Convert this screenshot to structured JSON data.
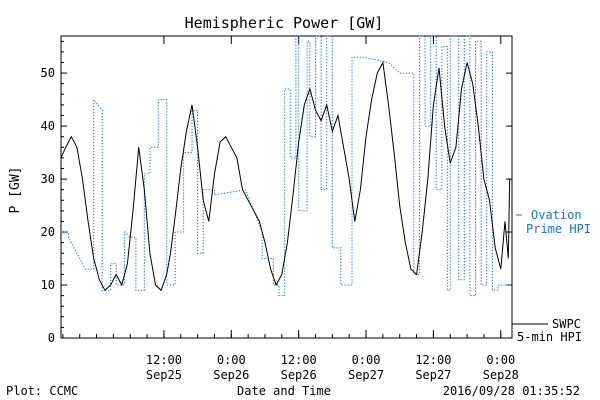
{
  "chart_data": {
    "type": "line",
    "title": "Hemispheric Power [GW]",
    "ylabel": "P [GW]",
    "xlabel": "Date and Time",
    "ylim": [
      0,
      57
    ],
    "yticks": [
      0,
      10,
      20,
      30,
      40,
      50
    ],
    "xlim": [
      "2016-09-24T17:40",
      "2016-09-28T02:00"
    ],
    "xticks": [
      {
        "t": "2016-09-25T12:00",
        "time": "12:00",
        "date": "Sep25"
      },
      {
        "t": "2016-09-26T00:00",
        "time": "0:00",
        "date": "Sep26"
      },
      {
        "t": "2016-09-26T12:00",
        "time": "12:00",
        "date": "Sep26"
      },
      {
        "t": "2016-09-27T00:00",
        "time": "0:00",
        "date": "Sep27"
      },
      {
        "t": "2016-09-27T12:00",
        "time": "12:00",
        "date": "Sep27"
      },
      {
        "t": "2016-09-28T00:00",
        "time": "0:00",
        "date": "Sep28"
      }
    ],
    "series": [
      {
        "name": "SWPC 5-min HPI",
        "color": "#000000",
        "style": "solid",
        "x": [
          "2016-09-24T17:40",
          "2016-09-24T18:30",
          "2016-09-24T19:30",
          "2016-09-24T20:30",
          "2016-09-24T21:30",
          "2016-09-24T22:30",
          "2016-09-24T23:30",
          "2016-09-25T00:30",
          "2016-09-25T01:30",
          "2016-09-25T02:30",
          "2016-09-25T03:30",
          "2016-09-25T04:30",
          "2016-09-25T05:30",
          "2016-09-25T06:30",
          "2016-09-25T07:30",
          "2016-09-25T08:30",
          "2016-09-25T09:30",
          "2016-09-25T10:30",
          "2016-09-25T11:30",
          "2016-09-25T12:30",
          "2016-09-25T13:10",
          "2016-09-25T14:00",
          "2016-09-25T15:00",
          "2016-09-25T16:00",
          "2016-09-25T17:00",
          "2016-09-25T18:00",
          "2016-09-25T19:00",
          "2016-09-25T20:00",
          "2016-09-25T21:00",
          "2016-09-25T22:00",
          "2016-09-25T23:00",
          "2016-09-26T00:00",
          "2016-09-26T01:00",
          "2016-09-26T02:00",
          "2016-09-26T03:00",
          "2016-09-26T04:00",
          "2016-09-26T05:00",
          "2016-09-26T06:00",
          "2016-09-26T07:00",
          "2016-09-26T08:00",
          "2016-09-26T09:00",
          "2016-09-26T10:00",
          "2016-09-26T11:00",
          "2016-09-26T12:00",
          "2016-09-26T13:00",
          "2016-09-26T14:00",
          "2016-09-26T15:00",
          "2016-09-26T16:00",
          "2016-09-26T17:00",
          "2016-09-26T18:00",
          "2016-09-26T19:00",
          "2016-09-26T20:00",
          "2016-09-26T21:00",
          "2016-09-26T22:00",
          "2016-09-26T23:00",
          "2016-09-27T00:00",
          "2016-09-27T01:00",
          "2016-09-27T02:00",
          "2016-09-27T03:00",
          "2016-09-27T04:00",
          "2016-09-27T05:00",
          "2016-09-27T06:00",
          "2016-09-27T07:00",
          "2016-09-27T08:00",
          "2016-09-27T09:00",
          "2016-09-27T10:00",
          "2016-09-27T11:00",
          "2016-09-27T12:00",
          "2016-09-27T13:00",
          "2016-09-27T14:00",
          "2016-09-27T15:00",
          "2016-09-27T16:00",
          "2016-09-27T17:00",
          "2016-09-27T18:00",
          "2016-09-27T19:00",
          "2016-09-27T20:00",
          "2016-09-27T21:00",
          "2016-09-27T22:00",
          "2016-09-27T23:00",
          "2016-09-28T00:00",
          "2016-09-28T00:45",
          "2016-09-28T01:20",
          "2016-09-28T01:35"
        ],
        "y": [
          34,
          36,
          38,
          36,
          30,
          22,
          15,
          11,
          9,
          10,
          12,
          10,
          14,
          24,
          36,
          28,
          16,
          10,
          9,
          12,
          16,
          23,
          32,
          39,
          44,
          36,
          26,
          22,
          31,
          37,
          38,
          36,
          34,
          28,
          26,
          24,
          22,
          18,
          13,
          10,
          12,
          18,
          27,
          37,
          44,
          47,
          43,
          41,
          44,
          39,
          42,
          36,
          30,
          22,
          28,
          38,
          45,
          50,
          52,
          44,
          35,
          25,
          18,
          13,
          12,
          20,
          30,
          44,
          51,
          40,
          33,
          36,
          47,
          52,
          48,
          40,
          30,
          26,
          17,
          13,
          22,
          15,
          30
        ]
      },
      {
        "name": "Ovation Prime HPI",
        "color": "#1f6fd0",
        "style": "dotted",
        "x": [
          "2016-09-24T17:40",
          "2016-09-24T19:00",
          "2016-09-24T19:00",
          "2016-09-24T22:00",
          "2016-09-24T23:30",
          "2016-09-24T23:30",
          "2016-09-25T01:00",
          "2016-09-25T01:00",
          "2016-09-25T02:30",
          "2016-09-25T02:30",
          "2016-09-25T03:30",
          "2016-09-25T03:30",
          "2016-09-25T05:00",
          "2016-09-25T05:00",
          "2016-09-25T06:00",
          "2016-09-25T07:00",
          "2016-09-25T07:00",
          "2016-09-25T08:30",
          "2016-09-25T08:30",
          "2016-09-25T09:30",
          "2016-09-25T09:30",
          "2016-09-25T11:00",
          "2016-09-25T11:00",
          "2016-09-25T12:30",
          "2016-09-25T12:30",
          "2016-09-25T14:00",
          "2016-09-25T14:00",
          "2016-09-25T15:30",
          "2016-09-25T15:30",
          "2016-09-25T17:00",
          "2016-09-25T17:00",
          "2016-09-25T18:00",
          "2016-09-25T18:00",
          "2016-09-25T19:00",
          "2016-09-25T19:00",
          "2016-09-25T21:00",
          "2016-09-25T21:00",
          "2016-09-26T02:30",
          "2016-09-26T05:30",
          "2016-09-26T05:30",
          "2016-09-26T07:30",
          "2016-09-26T07:30",
          "2016-09-26T08:30",
          "2016-09-26T08:30",
          "2016-09-26T09:30",
          "2016-09-26T09:30",
          "2016-09-26T10:30",
          "2016-09-26T10:30",
          "2016-09-26T11:30",
          "2016-09-26T11:30",
          "2016-09-26T12:00",
          "2016-09-26T12:00",
          "2016-09-26T13:30",
          "2016-09-26T13:30",
          "2016-09-26T14:00",
          "2016-09-26T14:00",
          "2016-09-26T15:00",
          "2016-09-26T15:00",
          "2016-09-26T16:00",
          "2016-09-26T16:00",
          "2016-09-26T17:00",
          "2016-09-26T17:00",
          "2016-09-26T18:00",
          "2016-09-26T18:00",
          "2016-09-26T19:30",
          "2016-09-26T19:30",
          "2016-09-26T21:30",
          "2016-09-26T21:30",
          "2016-09-26T23:30",
          "2016-09-27T04:00",
          "2016-09-27T06:00",
          "2016-09-27T08:30",
          "2016-09-27T08:30",
          "2016-09-27T09:30",
          "2016-09-27T09:30",
          "2016-09-27T10:30",
          "2016-09-27T10:30",
          "2016-09-27T11:30",
          "2016-09-27T11:30",
          "2016-09-27T12:30",
          "2016-09-27T12:30",
          "2016-09-27T13:30",
          "2016-09-27T13:30",
          "2016-09-27T14:30",
          "2016-09-27T14:30",
          "2016-09-27T15:00",
          "2016-09-27T15:00",
          "2016-09-27T16:30",
          "2016-09-27T16:30",
          "2016-09-27T17:30",
          "2016-09-27T17:30",
          "2016-09-27T18:30",
          "2016-09-27T18:30",
          "2016-09-27T19:30",
          "2016-09-27T19:30",
          "2016-09-27T20:30",
          "2016-09-27T20:30",
          "2016-09-27T21:30",
          "2016-09-27T21:30",
          "2016-09-27T22:30",
          "2016-09-27T22:30",
          "2016-09-27T23:30",
          "2016-09-27T23:30",
          "2016-09-28T02:00"
        ],
        "y": [
          20,
          20,
          19,
          13,
          13,
          45,
          43,
          9,
          9,
          14,
          14,
          10,
          10,
          20,
          19,
          19,
          9,
          9,
          31,
          31,
          36,
          36,
          45,
          45,
          10,
          10,
          20,
          20,
          35,
          35,
          43,
          43,
          16,
          16,
          28,
          28,
          27,
          28,
          20,
          15,
          15,
          10,
          10,
          8,
          8,
          47,
          47,
          34,
          34,
          57,
          57,
          24,
          24,
          56,
          56,
          38,
          38,
          57,
          57,
          28,
          28,
          57,
          57,
          17,
          17,
          10,
          10,
          53,
          53,
          52,
          50,
          50,
          12,
          12,
          57,
          57,
          40,
          40,
          57,
          57,
          28,
          28,
          55,
          55,
          9,
          9,
          57,
          57,
          11,
          11,
          57,
          57,
          8,
          8,
          56,
          56,
          10,
          10,
          54,
          54,
          9,
          9,
          10,
          10
        ]
      }
    ],
    "legend": [
      {
        "label_lines": [
          "Ovation",
          "Prime HPI"
        ],
        "color": "#1f6fd0"
      },
      {
        "label_lines": [
          "SWPC",
          "5-min HPI"
        ],
        "color": "#000000"
      }
    ]
  },
  "footer": {
    "left": "Plot: CCMC",
    "center": "Date and Time",
    "right": "2016/09/28 01:35:52"
  }
}
